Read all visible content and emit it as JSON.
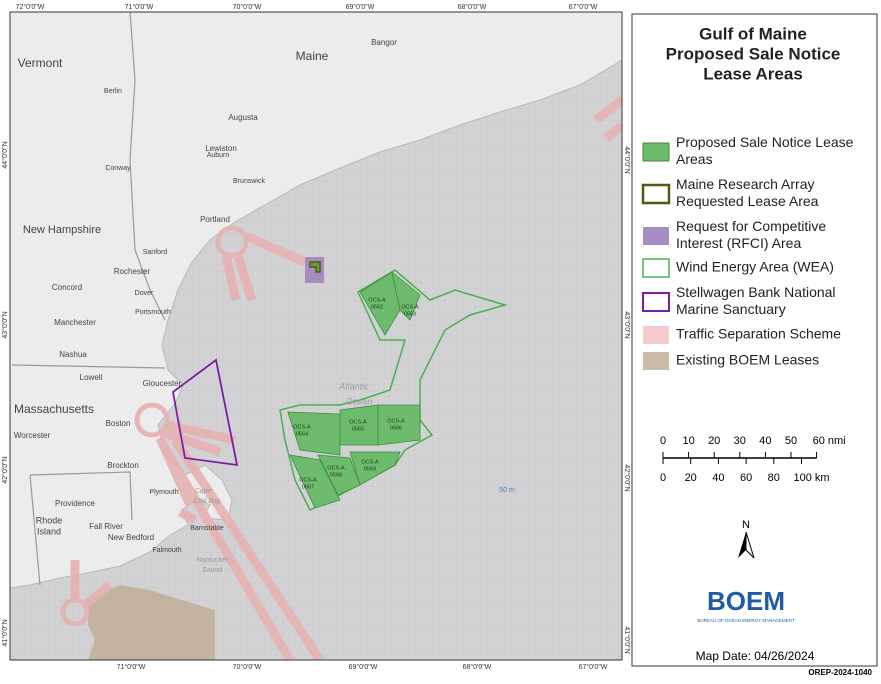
{
  "title_lines": [
    "Gulf of Maine",
    "Proposed Sale Notice",
    "Lease Areas"
  ],
  "legend": [
    [
      "Proposed Sale Notice Lease",
      "Areas"
    ],
    [
      "Maine Research Array",
      "Requested Lease Area"
    ],
    [
      "Request for Competitive",
      "Interest (RFCI) Area"
    ],
    [
      "Wind Energy Area (WEA)"
    ],
    [
      "Stellwagen Bank National",
      "Marine Sanctuary"
    ],
    [
      "Traffic Separation Scheme"
    ],
    [
      "Existing BOEM Leases"
    ]
  ],
  "scale": {
    "nmi": [
      "0",
      "10",
      "20",
      "30",
      "40",
      "50",
      "60 nmi"
    ],
    "km": [
      "0",
      "20",
      "40",
      "60",
      "80",
      "100 km"
    ]
  },
  "north": "N",
  "logo": {
    "name": "BOEM",
    "subtitle": "BUREAU OF OCEAN ENERGY MANAGEMENT"
  },
  "map_date": "Map Date: 04/26/2024",
  "doc_id": "OREP-2024-1040",
  "lon_top": [
    "72°0'0\"W",
    "71°0'0\"W",
    "70°0'0\"W",
    "69°0'0\"W",
    "68°0'0\"W",
    "67°0'0\"W"
  ],
  "lon_bottom": [
    "71°0'0\"W",
    "70°0'0\"W",
    "69°0'0\"W",
    "68°0'0\"W",
    "67°0'0\"W"
  ],
  "lat_left": [
    "44°0'0\"N",
    "43°0'0\"N",
    "42°0'0\"N",
    "41°0'0\"N"
  ],
  "lat_right": [
    "44°0'0\"N",
    "43°0'0\"N",
    "42°0'0\"N",
    "41°0'0\"N"
  ],
  "places": [
    "Vermont",
    "Maine",
    "Bangor",
    "Berlin",
    "Augusta",
    "Lewiston",
    "Auburn",
    "Conway",
    "Brunswick",
    "Portland",
    "New Hampshire",
    "Sanford",
    "Rochester",
    "Dover",
    "Concord",
    "Portsmouth",
    "Manchester",
    "Nashua",
    "Lowell",
    "Gloucester",
    "Massachusetts",
    "Boston",
    "Worcester",
    "Brockton",
    "Plymouth",
    "Cape",
    "Cod Bay",
    "Providence",
    "Rhode",
    "Island",
    "Fall River",
    "New Bedford",
    "Barnstable",
    "Falmouth",
    "Nantucket",
    "Sound",
    "Atlantic",
    "Ocean",
    "50 m"
  ],
  "leases": [
    [
      "OCS-A",
      "0562"
    ],
    [
      "OCS-A",
      "0563"
    ],
    [
      "OCS-A",
      "0564"
    ],
    [
      "OCS-A",
      "0565"
    ],
    [
      "OCS-A",
      "0566"
    ],
    [
      "OCS-A",
      "0567"
    ],
    [
      "OCS-A",
      "0568"
    ],
    [
      "OCS-A",
      "0569"
    ]
  ]
}
